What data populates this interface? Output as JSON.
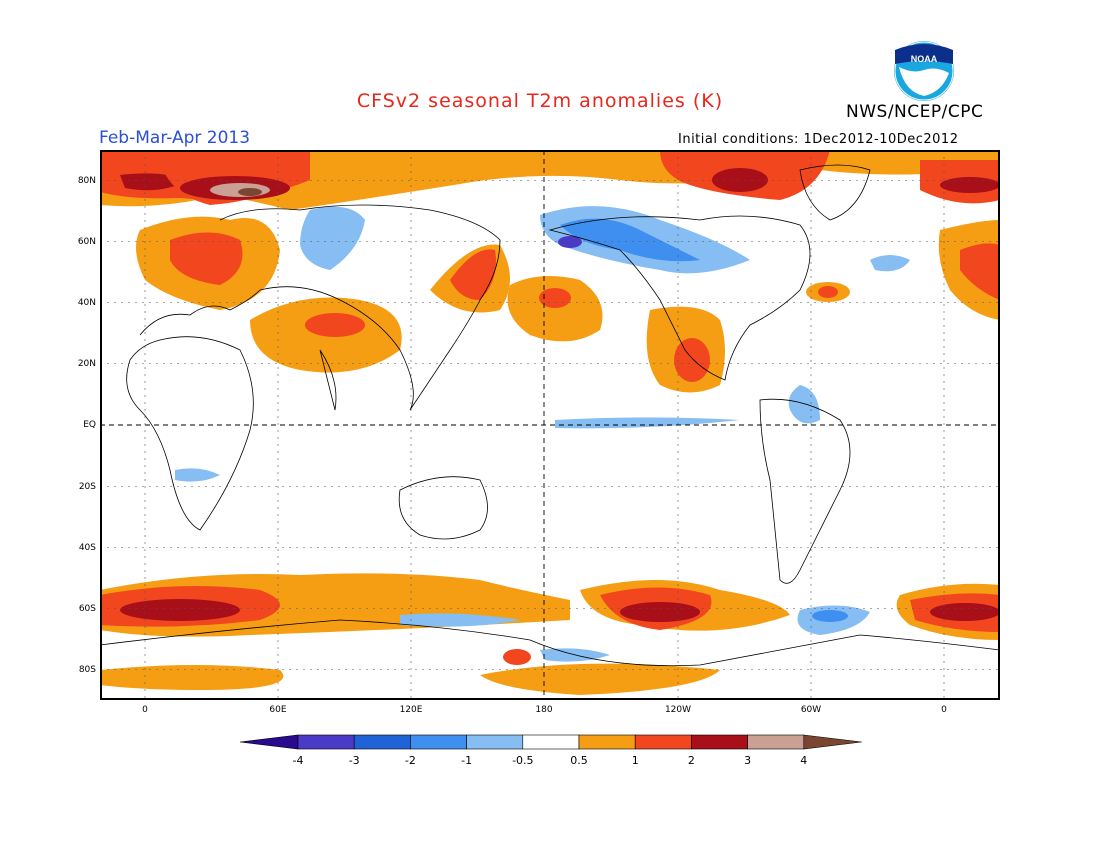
{
  "header": {
    "title": "CFSv2 seasonal T2m anomalies (K)",
    "period": "Feb-Mar-Apr 2013",
    "agency": "NWS/NCEP/CPC",
    "initial_conditions": "Initial conditions: 1Dec2012-10Dec2012",
    "logo_text": "NOAA"
  },
  "map": {
    "lat_labels": [
      "80N",
      "60N",
      "40N",
      "20N",
      "EQ",
      "20S",
      "40S",
      "60S",
      "80S"
    ],
    "lon_labels": [
      "0",
      "60E",
      "120E",
      "180",
      "120W",
      "60W",
      "0"
    ],
    "projection": "cylindrical equidistant",
    "lon_range": [
      -20,
      380
    ],
    "lat_range": [
      -90,
      90
    ],
    "grid": "dotted",
    "reference_lines": [
      "equator",
      "dateline"
    ]
  },
  "colorbar": {
    "tick_labels": [
      "-4",
      "-3",
      "-2",
      "-1",
      "-0.5",
      "0.5",
      "1",
      "2",
      "3",
      "4"
    ],
    "colors": [
      "#2a0a8f",
      "#4a3ac6",
      "#1f63d6",
      "#3f8ff0",
      "#86bdf2",
      "#ffffff",
      "#f59e14",
      "#f2461f",
      "#a80f18",
      "#c9a093",
      "#7a4632"
    ]
  }
}
